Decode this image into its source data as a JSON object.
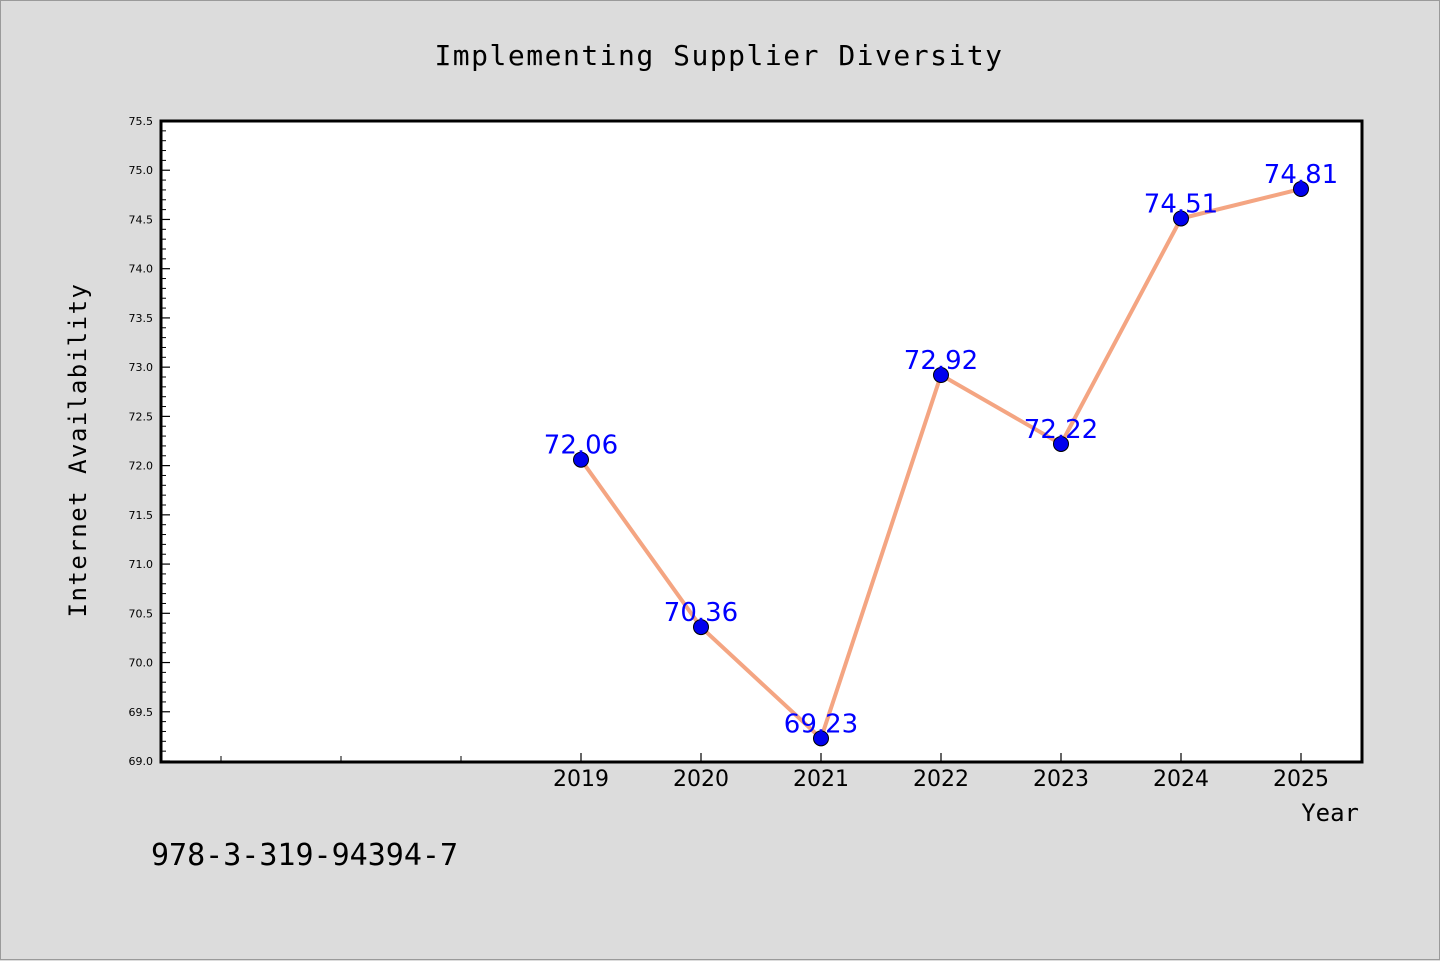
{
  "chart_data": {
    "type": "line",
    "title": "Implementing Supplier Diversity",
    "xlabel": "Year",
    "ylabel": "Internet Availability",
    "x": [
      2019,
      2020,
      2021,
      2022,
      2023,
      2024,
      2025
    ],
    "values": [
      72.06,
      70.36,
      69.23,
      72.92,
      72.22,
      74.51,
      74.81
    ],
    "data_labels": [
      "72.06",
      "70.36",
      "69.23",
      "72.92",
      "72.22",
      "74.51",
      "74.81"
    ],
    "ylim": [
      69.0,
      75.5
    ],
    "y_ticks": [
      "69.0",
      "69.5",
      "70.0",
      "70.5",
      "71.0",
      "71.5",
      "72.0",
      "72.5",
      "73.0",
      "73.5",
      "74.0",
      "74.5",
      "75.0",
      "75.5"
    ],
    "x_ticks": [
      "2019",
      "2020",
      "2021",
      "2022",
      "2023",
      "2024",
      "2025"
    ],
    "line_color": "#f4a582",
    "marker_color": "#0000ee",
    "label_color": "#0000ff",
    "grid": false
  },
  "annotation": "978-3-319-94394-7"
}
